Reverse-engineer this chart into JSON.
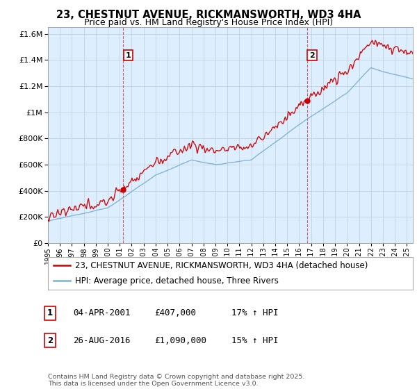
{
  "title": "23, CHESTNUT AVENUE, RICKMANSWORTH, WD3 4HA",
  "subtitle": "Price paid vs. HM Land Registry's House Price Index (HPI)",
  "ytick_values": [
    0,
    200000,
    400000,
    600000,
    800000,
    1000000,
    1200000,
    1400000,
    1600000
  ],
  "ylim": [
    0,
    1650000
  ],
  "xlim_start": 1995.0,
  "xlim_end": 2025.5,
  "red_color": "#CC0000",
  "blue_color": "#7aafd4",
  "chart_bg": "#ddeeff",
  "background_color": "#FFFFFF",
  "grid_color": "#BBCCDD",
  "transaction1_x": 2001.27,
  "transaction1_y": 407000,
  "transaction2_x": 2016.65,
  "transaction2_y": 1090000,
  "legend_red": "23, CHESTNUT AVENUE, RICKMANSWORTH, WD3 4HA (detached house)",
  "legend_blue": "HPI: Average price, detached house, Three Rivers",
  "table_rows": [
    [
      "1",
      "04-APR-2001",
      "£407,000",
      "17% ↑ HPI"
    ],
    [
      "2",
      "26-AUG-2016",
      "£1,090,000",
      "15% ↑ HPI"
    ]
  ],
  "footer": "Contains HM Land Registry data © Crown copyright and database right 2025.\nThis data is licensed under the Open Government Licence v3.0."
}
